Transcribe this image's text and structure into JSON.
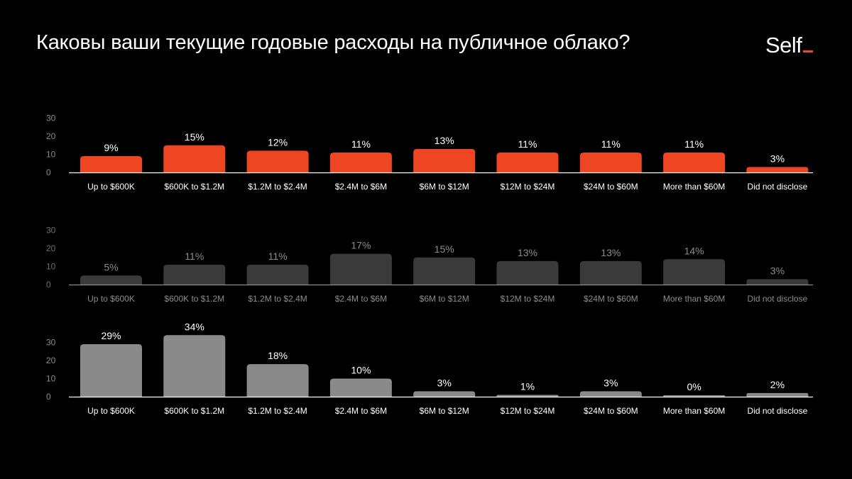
{
  "title": "Каковы ваши текущие годовые расходы на публичное облако?",
  "logo": {
    "text": "Self",
    "accent": "#ee4522"
  },
  "chart_data": [
    {
      "type": "bar",
      "categories": [
        "Up to $600K",
        "$600K to $1.2M",
        "$1.2M to $2.4M",
        "$2.4M to $6M",
        "$6M to $12M",
        "$12M to $24M",
        "$24M to $60M",
        "More than $60M",
        "Did not disclose"
      ],
      "values": [
        9,
        15,
        12,
        11,
        13,
        11,
        11,
        11,
        3
      ],
      "value_labels": [
        "9%",
        "15%",
        "12%",
        "11%",
        "13%",
        "11%",
        "11%",
        "11%",
        "3%"
      ],
      "yticks": [
        "0",
        "10",
        "20",
        "30"
      ],
      "ylim": [
        0,
        30
      ],
      "bar_color": "#ee4522",
      "label_color": "#ffffff",
      "tick_color": "#8c8c8c",
      "axis_color": "#ffffff"
    },
    {
      "type": "bar",
      "categories": [
        "Up to $600K",
        "$600K to $1.2M",
        "$1.2M to $2.4M",
        "$2.4M to $6M",
        "$6M to $12M",
        "$12M to $24M",
        "$24M to $60M",
        "More than $60M",
        "Did not disclose"
      ],
      "values": [
        5,
        11,
        11,
        17,
        15,
        13,
        13,
        14,
        3
      ],
      "value_labels": [
        "5%",
        "11%",
        "11%",
        "17%",
        "15%",
        "13%",
        "13%",
        "14%",
        "3%"
      ],
      "yticks": [
        "0",
        "10",
        "20",
        "30"
      ],
      "ylim": [
        0,
        30
      ],
      "bar_color": "#3a3a3a",
      "label_color": "#8c8c8c",
      "tick_color": "#6e6e6e",
      "axis_color": "#8c8c8c"
    },
    {
      "type": "bar",
      "categories": [
        "Up to $600K",
        "$600K to $1.2M",
        "$1.2M to $2.4M",
        "$2.4M to $6M",
        "$6M to $12M",
        "$12M to $24M",
        "$24M to $60M",
        "More than $60M",
        "Did not disclose"
      ],
      "values": [
        29,
        34,
        18,
        10,
        3,
        1,
        3,
        0,
        2
      ],
      "value_labels": [
        "29%",
        "34%",
        "18%",
        "10%",
        "3%",
        "1%",
        "3%",
        "0%",
        "2%"
      ],
      "yticks": [
        "0",
        "10",
        "20",
        "30"
      ],
      "ylim": [
        0,
        30
      ],
      "bar_color": "#8a8a8a",
      "label_color": "#ffffff",
      "tick_color": "#8c8c8c",
      "axis_color": "#ffffff"
    }
  ]
}
